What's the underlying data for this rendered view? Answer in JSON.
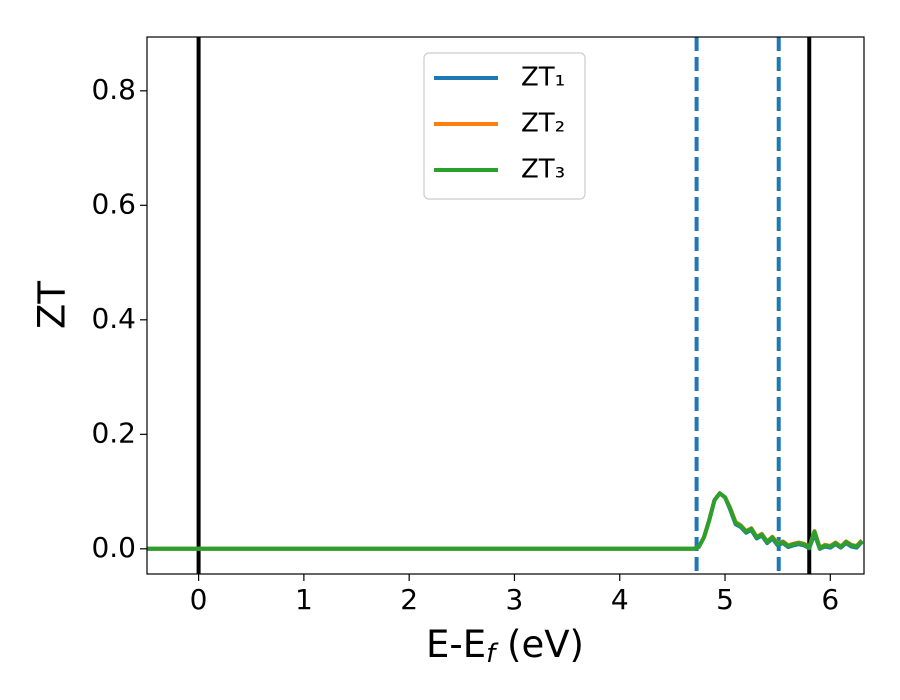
{
  "chart_data": {
    "type": "line",
    "xlabel": [
      "E-E",
      "f",
      " (eV)"
    ],
    "ylabel": "ZT",
    "x": [
      -0.49,
      4.0,
      4.7,
      4.75,
      4.8,
      4.85,
      4.9,
      4.95,
      5.0,
      5.05,
      5.1,
      5.15,
      5.2,
      5.25,
      5.3,
      5.35,
      5.4,
      5.45,
      5.5,
      5.55,
      5.6,
      5.65,
      5.7,
      5.75,
      5.8,
      5.85,
      5.9,
      5.95,
      6.0,
      6.05,
      6.1,
      6.15,
      6.2,
      6.25,
      6.3
    ],
    "series": [
      {
        "name": "ZT₁",
        "color": "#1f77b4",
        "values": [
          0,
          0,
          0,
          0.003,
          0.02,
          0.05,
          0.085,
          0.097,
          0.09,
          0.068,
          0.043,
          0.038,
          0.028,
          0.033,
          0.018,
          0.023,
          0.01,
          0.018,
          0.006,
          0.01,
          0.003,
          0.006,
          0.008,
          0.006,
          0.001,
          0.026,
          0.0,
          0.004,
          0.002,
          0.008,
          0.002,
          0.01,
          0.004,
          0.002,
          0.012
        ]
      },
      {
        "name": "ZT₂",
        "color": "#ff7f0e",
        "values": [
          0,
          0,
          0,
          0.003,
          0.02,
          0.05,
          0.085,
          0.097,
          0.09,
          0.071,
          0.047,
          0.041,
          0.031,
          0.036,
          0.021,
          0.026,
          0.013,
          0.021,
          0.009,
          0.013,
          0.006,
          0.009,
          0.011,
          0.009,
          0.003,
          0.031,
          0.002,
          0.007,
          0.005,
          0.011,
          0.004,
          0.013,
          0.007,
          0.005,
          0.015
        ]
      },
      {
        "name": "ZT₃",
        "color": "#2ca02c",
        "values": [
          0,
          0,
          0,
          0.003,
          0.02,
          0.05,
          0.085,
          0.097,
          0.09,
          0.07,
          0.045,
          0.04,
          0.03,
          0.035,
          0.02,
          0.025,
          0.012,
          0.02,
          0.008,
          0.012,
          0.005,
          0.008,
          0.01,
          0.008,
          0.002,
          0.03,
          0.001,
          0.006,
          0.004,
          0.01,
          0.003,
          0.012,
          0.006,
          0.004,
          0.014
        ]
      }
    ],
    "vlines": [
      {
        "x": 0,
        "color": "#000000",
        "style": "solid"
      },
      {
        "x": 5.8,
        "color": "#000000",
        "style": "solid"
      },
      {
        "x": 4.73,
        "color": "#1f77b4",
        "style": "dashed"
      },
      {
        "x": 5.51,
        "color": "#1f77b4",
        "style": "dashed"
      }
    ],
    "xlim": [
      -0.49,
      6.32
    ],
    "ylim": [
      -0.044,
      0.894
    ],
    "xticks": [
      0,
      1,
      2,
      3,
      4,
      5,
      6
    ],
    "yticks": [
      {
        "value": 0,
        "label": "0.0"
      },
      {
        "value": 0.2,
        "label": "0.2"
      },
      {
        "value": 0.4,
        "label": "0.4"
      },
      {
        "value": 0.6,
        "label": "0.6"
      },
      {
        "value": 0.8,
        "label": "0.8"
      }
    ],
    "legend": "upper center"
  }
}
